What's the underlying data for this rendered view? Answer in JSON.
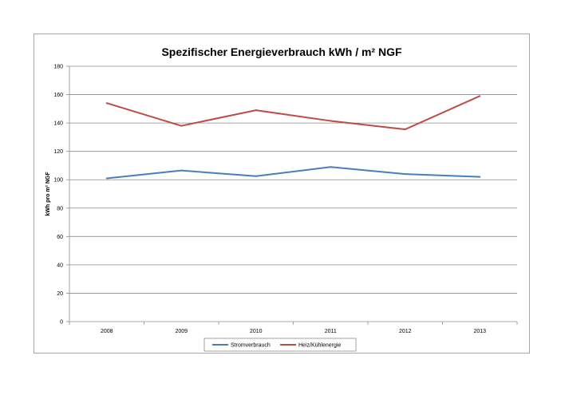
{
  "chart_data": {
    "type": "line",
    "title": "Spezifischer Energieverbrauch kWh / m² NGF",
    "xlabel": "",
    "ylabel": "kWh pro m² NGF",
    "categories": [
      "2008",
      "2009",
      "2010",
      "2011",
      "2012",
      "2013"
    ],
    "series": [
      {
        "name": "Stromverbrauch",
        "color": "#4a7ebb",
        "values": [
          101,
          106.5,
          102.5,
          109,
          104,
          102
        ]
      },
      {
        "name": "Heiz/Kühlenergie",
        "color": "#be4b48",
        "values": [
          154,
          138,
          149,
          141.5,
          135.5,
          159
        ]
      }
    ],
    "ylim": [
      0,
      180
    ],
    "yticks": [
      "0",
      "20",
      "40",
      "60",
      "80",
      "100",
      "120",
      "140",
      "160",
      "180"
    ],
    "grid": true,
    "legend": "bottom"
  }
}
